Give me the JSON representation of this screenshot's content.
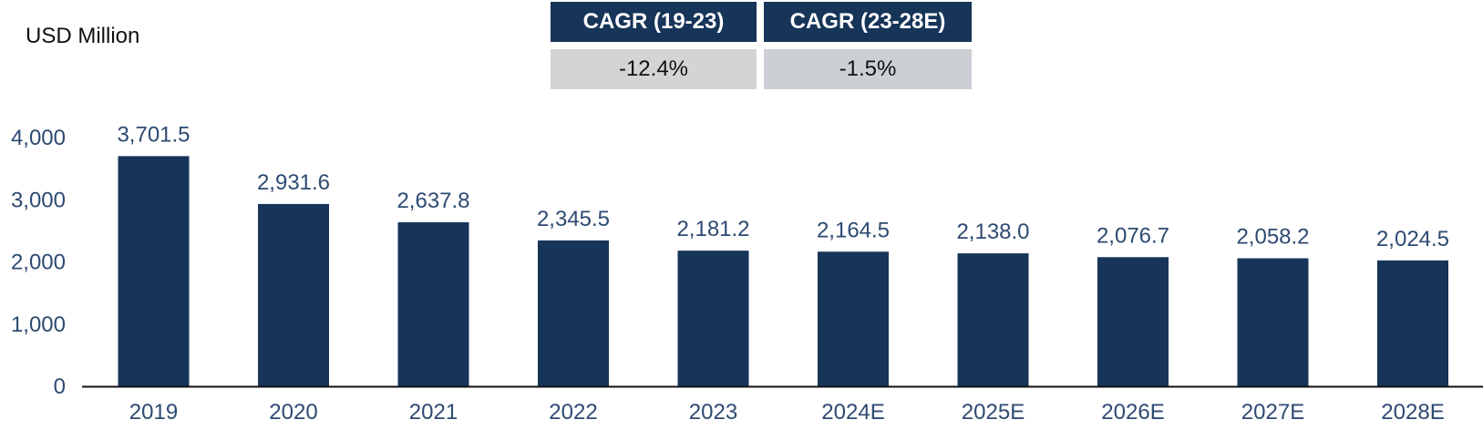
{
  "unit_label": "USD Million",
  "cagr": [
    {
      "label": "CAGR (19-23)",
      "value": "-12.4%"
    },
    {
      "label": "CAGR (23-28E)",
      "value": "-1.5%"
    }
  ],
  "colors": {
    "bar": "#173459",
    "header_bg": "#173459",
    "cagr_val_bg_1": "#d4d4d4",
    "cagr_val_bg_2": "#ccd0d4",
    "axis_text": "#2e4a72",
    "axis_line": "#111111"
  },
  "chart_data": {
    "type": "bar",
    "categories": [
      "2019",
      "2020",
      "2021",
      "2022",
      "2023",
      "2024E",
      "2025E",
      "2026E",
      "2027E",
      "2028E"
    ],
    "values": [
      3701.5,
      2931.6,
      2637.8,
      2345.5,
      2181.2,
      2164.5,
      2138.0,
      2076.7,
      2058.2,
      2024.5
    ],
    "data_labels": [
      "3,701.5",
      "2,931.6",
      "2,637.8",
      "2,345.5",
      "2,181.2",
      "2,164.5",
      "2,138.0",
      "2,076.7",
      "2,058.2",
      "2,024.5"
    ],
    "yticks": [
      0,
      1000,
      2000,
      3000,
      4000
    ],
    "ytick_labels": [
      "0",
      "1,000",
      "2,000",
      "3,000",
      "4,000"
    ],
    "ylim": [
      0,
      4000
    ],
    "grid": false,
    "legend": "none"
  }
}
